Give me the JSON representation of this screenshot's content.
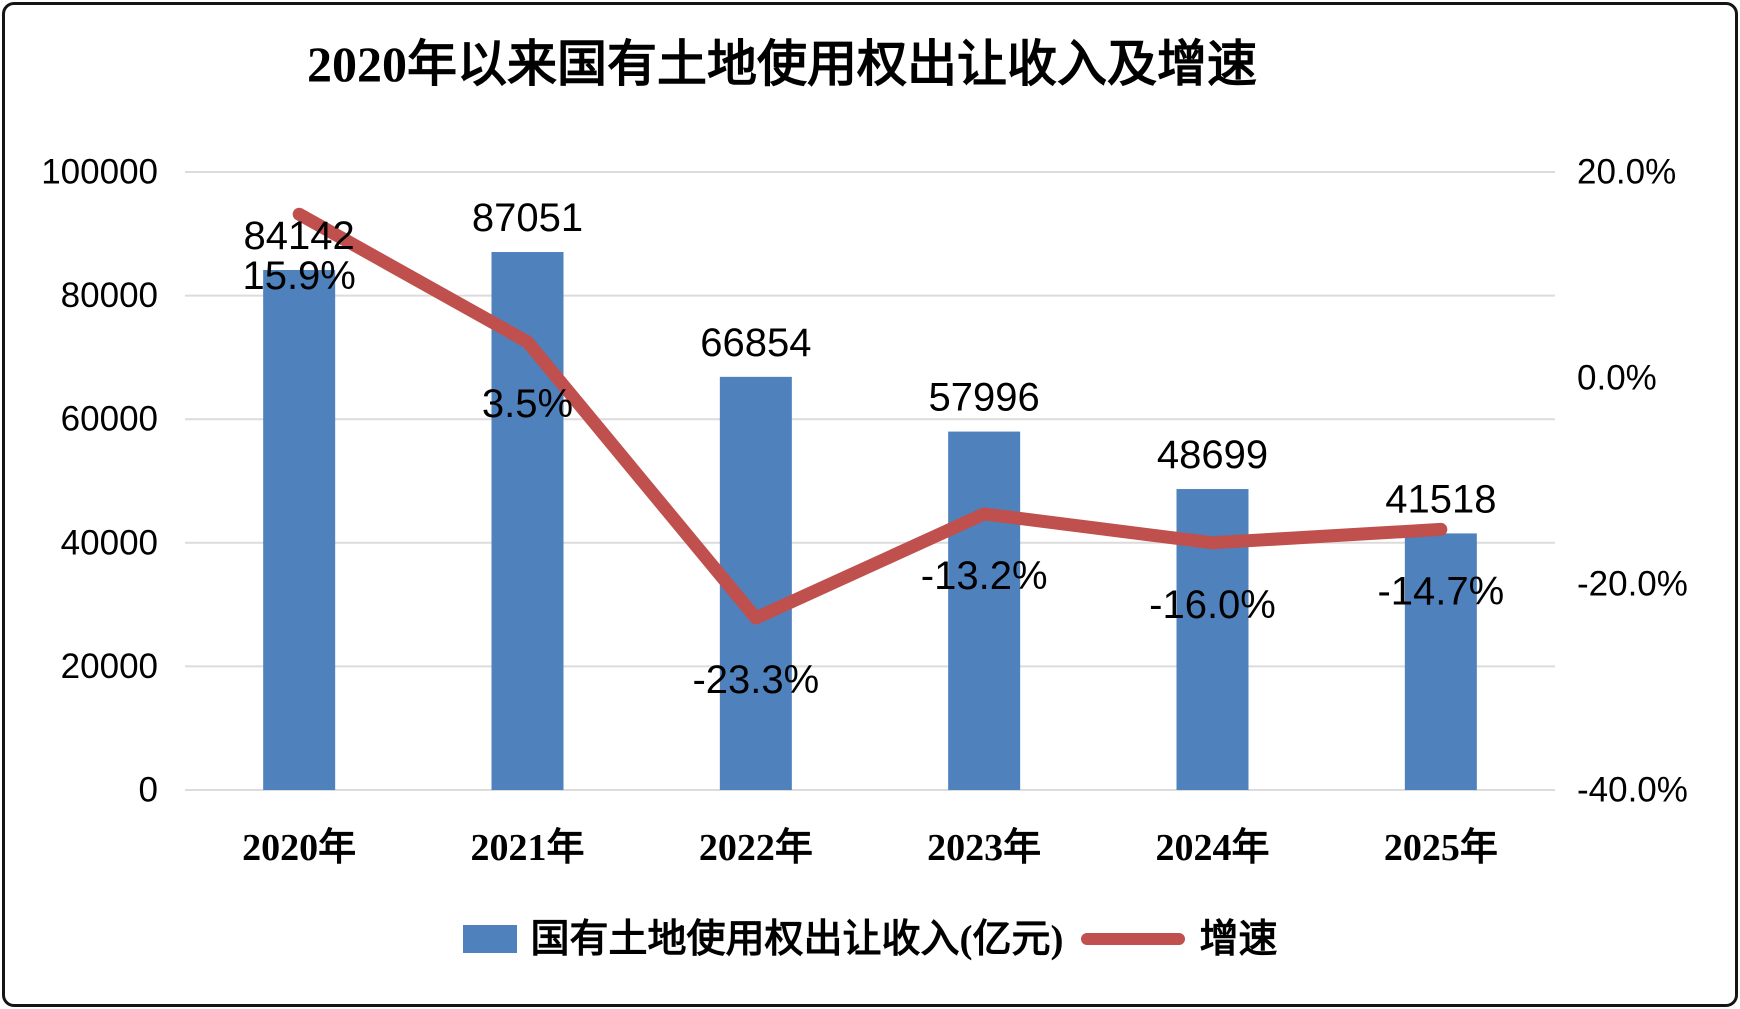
{
  "chart_data": {
    "type": "bar",
    "combo": "bar+line",
    "title": "2020年以来国有土地使用权出让收入及增速",
    "categories": [
      "2020年",
      "2021年",
      "2022年",
      "2023年",
      "2024年",
      "2025年"
    ],
    "series": [
      {
        "name": "国有土地使用权出让收入(亿元)",
        "type": "bar",
        "axis": "left",
        "values": [
          84142,
          87051,
          66854,
          57996,
          48699,
          41518
        ],
        "labels": [
          "84142",
          "87051",
          "66854",
          "57996",
          "48699",
          "41518"
        ],
        "color": "#4F81BD"
      },
      {
        "name": "增速",
        "type": "line",
        "axis": "right",
        "values": [
          15.9,
          3.5,
          -23.3,
          -13.2,
          -16.0,
          -14.7
        ],
        "labels": [
          "15.9%",
          "3.5%",
          "-23.3%",
          "-13.2%",
          "-16.0%",
          "-14.7%"
        ],
        "color": "#C0504D"
      }
    ],
    "left_axis": {
      "min": 0,
      "max": 100000,
      "ticks": [
        "0",
        "20000",
        "40000",
        "60000",
        "80000",
        "100000"
      ]
    },
    "right_axis": {
      "min": -40,
      "max": 20,
      "ticks": [
        "20.0%",
        "0.0%",
        "-20.0%",
        "-40.0%"
      ]
    },
    "grid": true,
    "legend_position": "bottom",
    "colors": {
      "bar": "#4F81BD",
      "line": "#C0504D",
      "gridline": "#DCDCDC",
      "text": "#000000",
      "background": "#FFFFFF",
      "frame_border": "#141414"
    }
  }
}
